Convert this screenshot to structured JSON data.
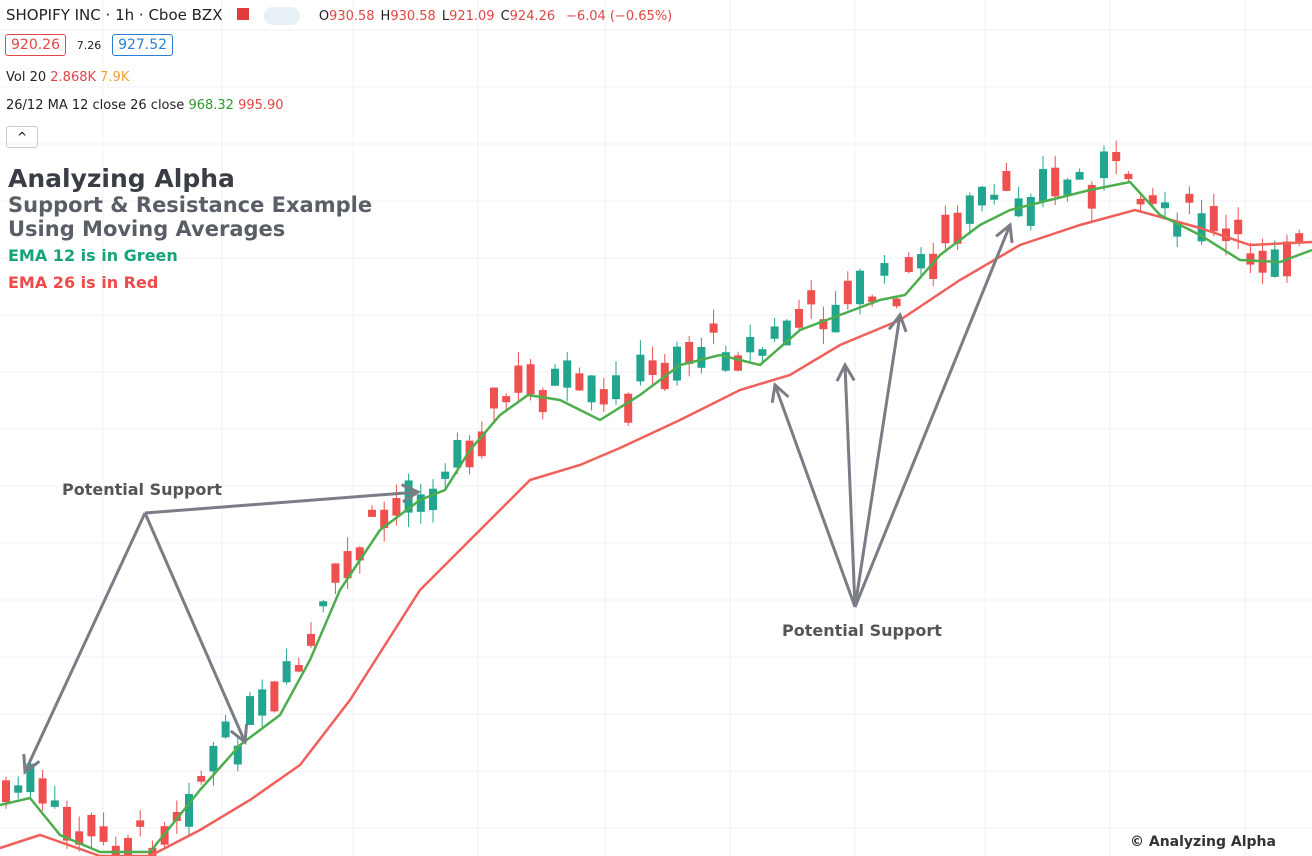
{
  "header": {
    "symbol": "SHOPIFY INC",
    "interval": "1h",
    "exchange": "Cboe BZX",
    "ohlc": [
      {
        "label": "O",
        "value": "930.58"
      },
      {
        "label": "H",
        "value": "930.58"
      },
      {
        "label": "L",
        "value": "921.09"
      },
      {
        "label": "C",
        "value": "924.26"
      }
    ],
    "change": "−6.04 (−0.65%)",
    "bid": "920.26",
    "spread": "7.26",
    "ask": "927.52"
  },
  "indicators": {
    "volume": {
      "name": "Vol 20",
      "value1": "2.868K",
      "value2": "7.9K"
    },
    "ma": {
      "name": "26/12 MA 12 close 26 close",
      "value1": "968.32",
      "value2": "995.90"
    }
  },
  "annotations": {
    "title": "Analyzing Alpha",
    "subtitle1": "Support & Resistance Example",
    "subtitle2": "Using Moving Averages",
    "green_note": "EMA 12 is in Green",
    "red_note": "EMA 26 is in Red",
    "support_left": "Potential Support",
    "support_right": "Potential Support",
    "copyright": "© Analyzing Alpha"
  }
}
